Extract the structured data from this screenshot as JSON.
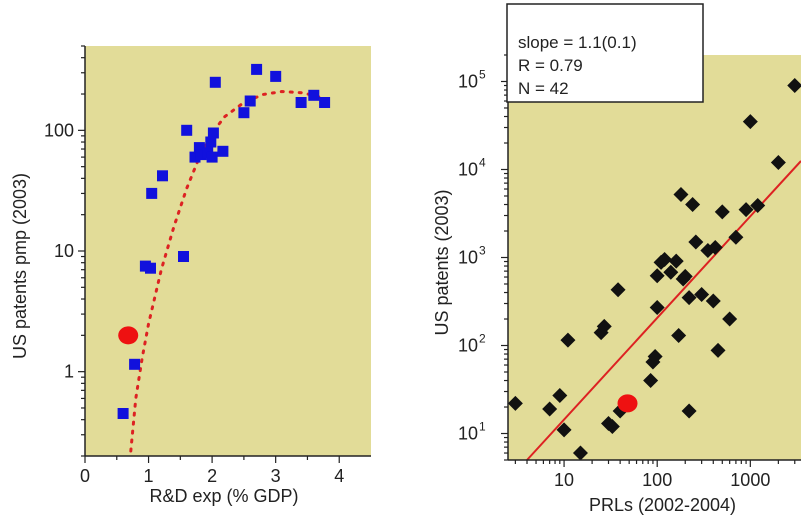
{
  "chart_data": [
    {
      "type": "scatter",
      "xlabel": "R&D exp (% GDP)",
      "ylabel": "US patents pmp (2003)",
      "xlim": [
        0,
        4.5
      ],
      "ylim": [
        0.2,
        500
      ],
      "yscale": "log",
      "x_ticks": [
        0,
        1,
        2,
        3,
        4
      ],
      "x_tick_labels": [
        "0",
        "1",
        "2",
        "3",
        "4"
      ],
      "y_ticks": [
        1,
        10,
        100
      ],
      "y_tick_labels": [
        "1",
        "10",
        "100"
      ],
      "background": "#e2dc98",
      "points": [
        {
          "x": 0.6,
          "y": 0.45
        },
        {
          "x": 0.78,
          "y": 1.15
        },
        {
          "x": 0.95,
          "y": 7.5
        },
        {
          "x": 1.03,
          "y": 7.2
        },
        {
          "x": 1.05,
          "y": 30
        },
        {
          "x": 1.22,
          "y": 42
        },
        {
          "x": 1.55,
          "y": 9
        },
        {
          "x": 1.6,
          "y": 100
        },
        {
          "x": 1.73,
          "y": 60
        },
        {
          "x": 1.8,
          "y": 72
        },
        {
          "x": 1.83,
          "y": 63
        },
        {
          "x": 1.93,
          "y": 65
        },
        {
          "x": 1.98,
          "y": 80
        },
        {
          "x": 2.0,
          "y": 60
        },
        {
          "x": 2.02,
          "y": 95
        },
        {
          "x": 2.05,
          "y": 250
        },
        {
          "x": 2.17,
          "y": 67
        },
        {
          "x": 2.5,
          "y": 140
        },
        {
          "x": 2.6,
          "y": 175
        },
        {
          "x": 2.7,
          "y": 320
        },
        {
          "x": 3.0,
          "y": 280
        },
        {
          "x": 3.4,
          "y": 170
        },
        {
          "x": 3.6,
          "y": 195
        },
        {
          "x": 3.77,
          "y": 170
        }
      ],
      "highlight": {
        "x": 0.68,
        "y": 2.0
      },
      "fit_curve": [
        {
          "x": 0.72,
          "y": 0.22
        },
        {
          "x": 0.8,
          "y": 0.6
        },
        {
          "x": 0.9,
          "y": 1.3
        },
        {
          "x": 1.0,
          "y": 2.5
        },
        {
          "x": 1.2,
          "y": 7
        },
        {
          "x": 1.4,
          "y": 16
        },
        {
          "x": 1.6,
          "y": 33
        },
        {
          "x": 1.8,
          "y": 60
        },
        {
          "x": 2.0,
          "y": 95
        },
        {
          "x": 2.2,
          "y": 130
        },
        {
          "x": 2.5,
          "y": 170
        },
        {
          "x": 2.8,
          "y": 198
        },
        {
          "x": 3.1,
          "y": 210
        },
        {
          "x": 3.4,
          "y": 205
        },
        {
          "x": 3.6,
          "y": 195
        },
        {
          "x": 3.75,
          "y": 185
        }
      ],
      "colors": {
        "points": "#1111dd",
        "highlight": "#ee1111",
        "fit": "#dd2222"
      }
    },
    {
      "type": "scatter",
      "xlabel": "PRLs (2002-2004)",
      "ylabel": "US patents (2003)",
      "xscale": "log",
      "yscale": "log",
      "xlim": [
        2.5,
        3500
      ],
      "ylim": [
        5,
        200000
      ],
      "x_ticks": [
        10,
        100,
        1000
      ],
      "x_tick_labels": [
        "10",
        "100",
        "1000"
      ],
      "y_ticks": [
        10,
        100,
        1000,
        10000,
        100000
      ],
      "y_tick_mantissa": "10",
      "y_tick_exponents": [
        "1",
        "2",
        "3",
        "4",
        "5"
      ],
      "background": "#e2dc98",
      "stats": [
        "slope = 1.1(0.1)",
        "R  = 0.79",
        "N  = 42"
      ],
      "points": [
        {
          "x": 3,
          "y": 22
        },
        {
          "x": 7,
          "y": 19
        },
        {
          "x": 9,
          "y": 27
        },
        {
          "x": 10,
          "y": 11
        },
        {
          "x": 11,
          "y": 115
        },
        {
          "x": 15,
          "y": 6
        },
        {
          "x": 25,
          "y": 140
        },
        {
          "x": 27,
          "y": 165
        },
        {
          "x": 30,
          "y": 13
        },
        {
          "x": 33,
          "y": 12
        },
        {
          "x": 38,
          "y": 430
        },
        {
          "x": 40,
          "y": 18
        },
        {
          "x": 85,
          "y": 40
        },
        {
          "x": 90,
          "y": 65
        },
        {
          "x": 95,
          "y": 75
        },
        {
          "x": 100,
          "y": 620
        },
        {
          "x": 100,
          "y": 270
        },
        {
          "x": 110,
          "y": 880
        },
        {
          "x": 120,
          "y": 950
        },
        {
          "x": 140,
          "y": 680
        },
        {
          "x": 160,
          "y": 910
        },
        {
          "x": 170,
          "y": 130
        },
        {
          "x": 180,
          "y": 5200
        },
        {
          "x": 190,
          "y": 570
        },
        {
          "x": 200,
          "y": 610
        },
        {
          "x": 220,
          "y": 18
        },
        {
          "x": 220,
          "y": 350
        },
        {
          "x": 240,
          "y": 4000
        },
        {
          "x": 260,
          "y": 1500
        },
        {
          "x": 300,
          "y": 380
        },
        {
          "x": 350,
          "y": 1200
        },
        {
          "x": 400,
          "y": 320
        },
        {
          "x": 420,
          "y": 1300
        },
        {
          "x": 450,
          "y": 88
        },
        {
          "x": 500,
          "y": 3300
        },
        {
          "x": 600,
          "y": 200
        },
        {
          "x": 700,
          "y": 1700
        },
        {
          "x": 900,
          "y": 3500
        },
        {
          "x": 1000,
          "y": 35000
        },
        {
          "x": 1200,
          "y": 3900
        },
        {
          "x": 2000,
          "y": 12000
        },
        {
          "x": 3000,
          "y": 90000
        }
      ],
      "highlight": {
        "x": 48,
        "y": 22
      },
      "fit_line": [
        {
          "x": 4,
          "y": 5
        },
        {
          "x": 3500,
          "y": 12500
        }
      ],
      "colors": {
        "points": "#111111",
        "highlight": "#ee1111",
        "fit": "#dd2222"
      }
    }
  ]
}
